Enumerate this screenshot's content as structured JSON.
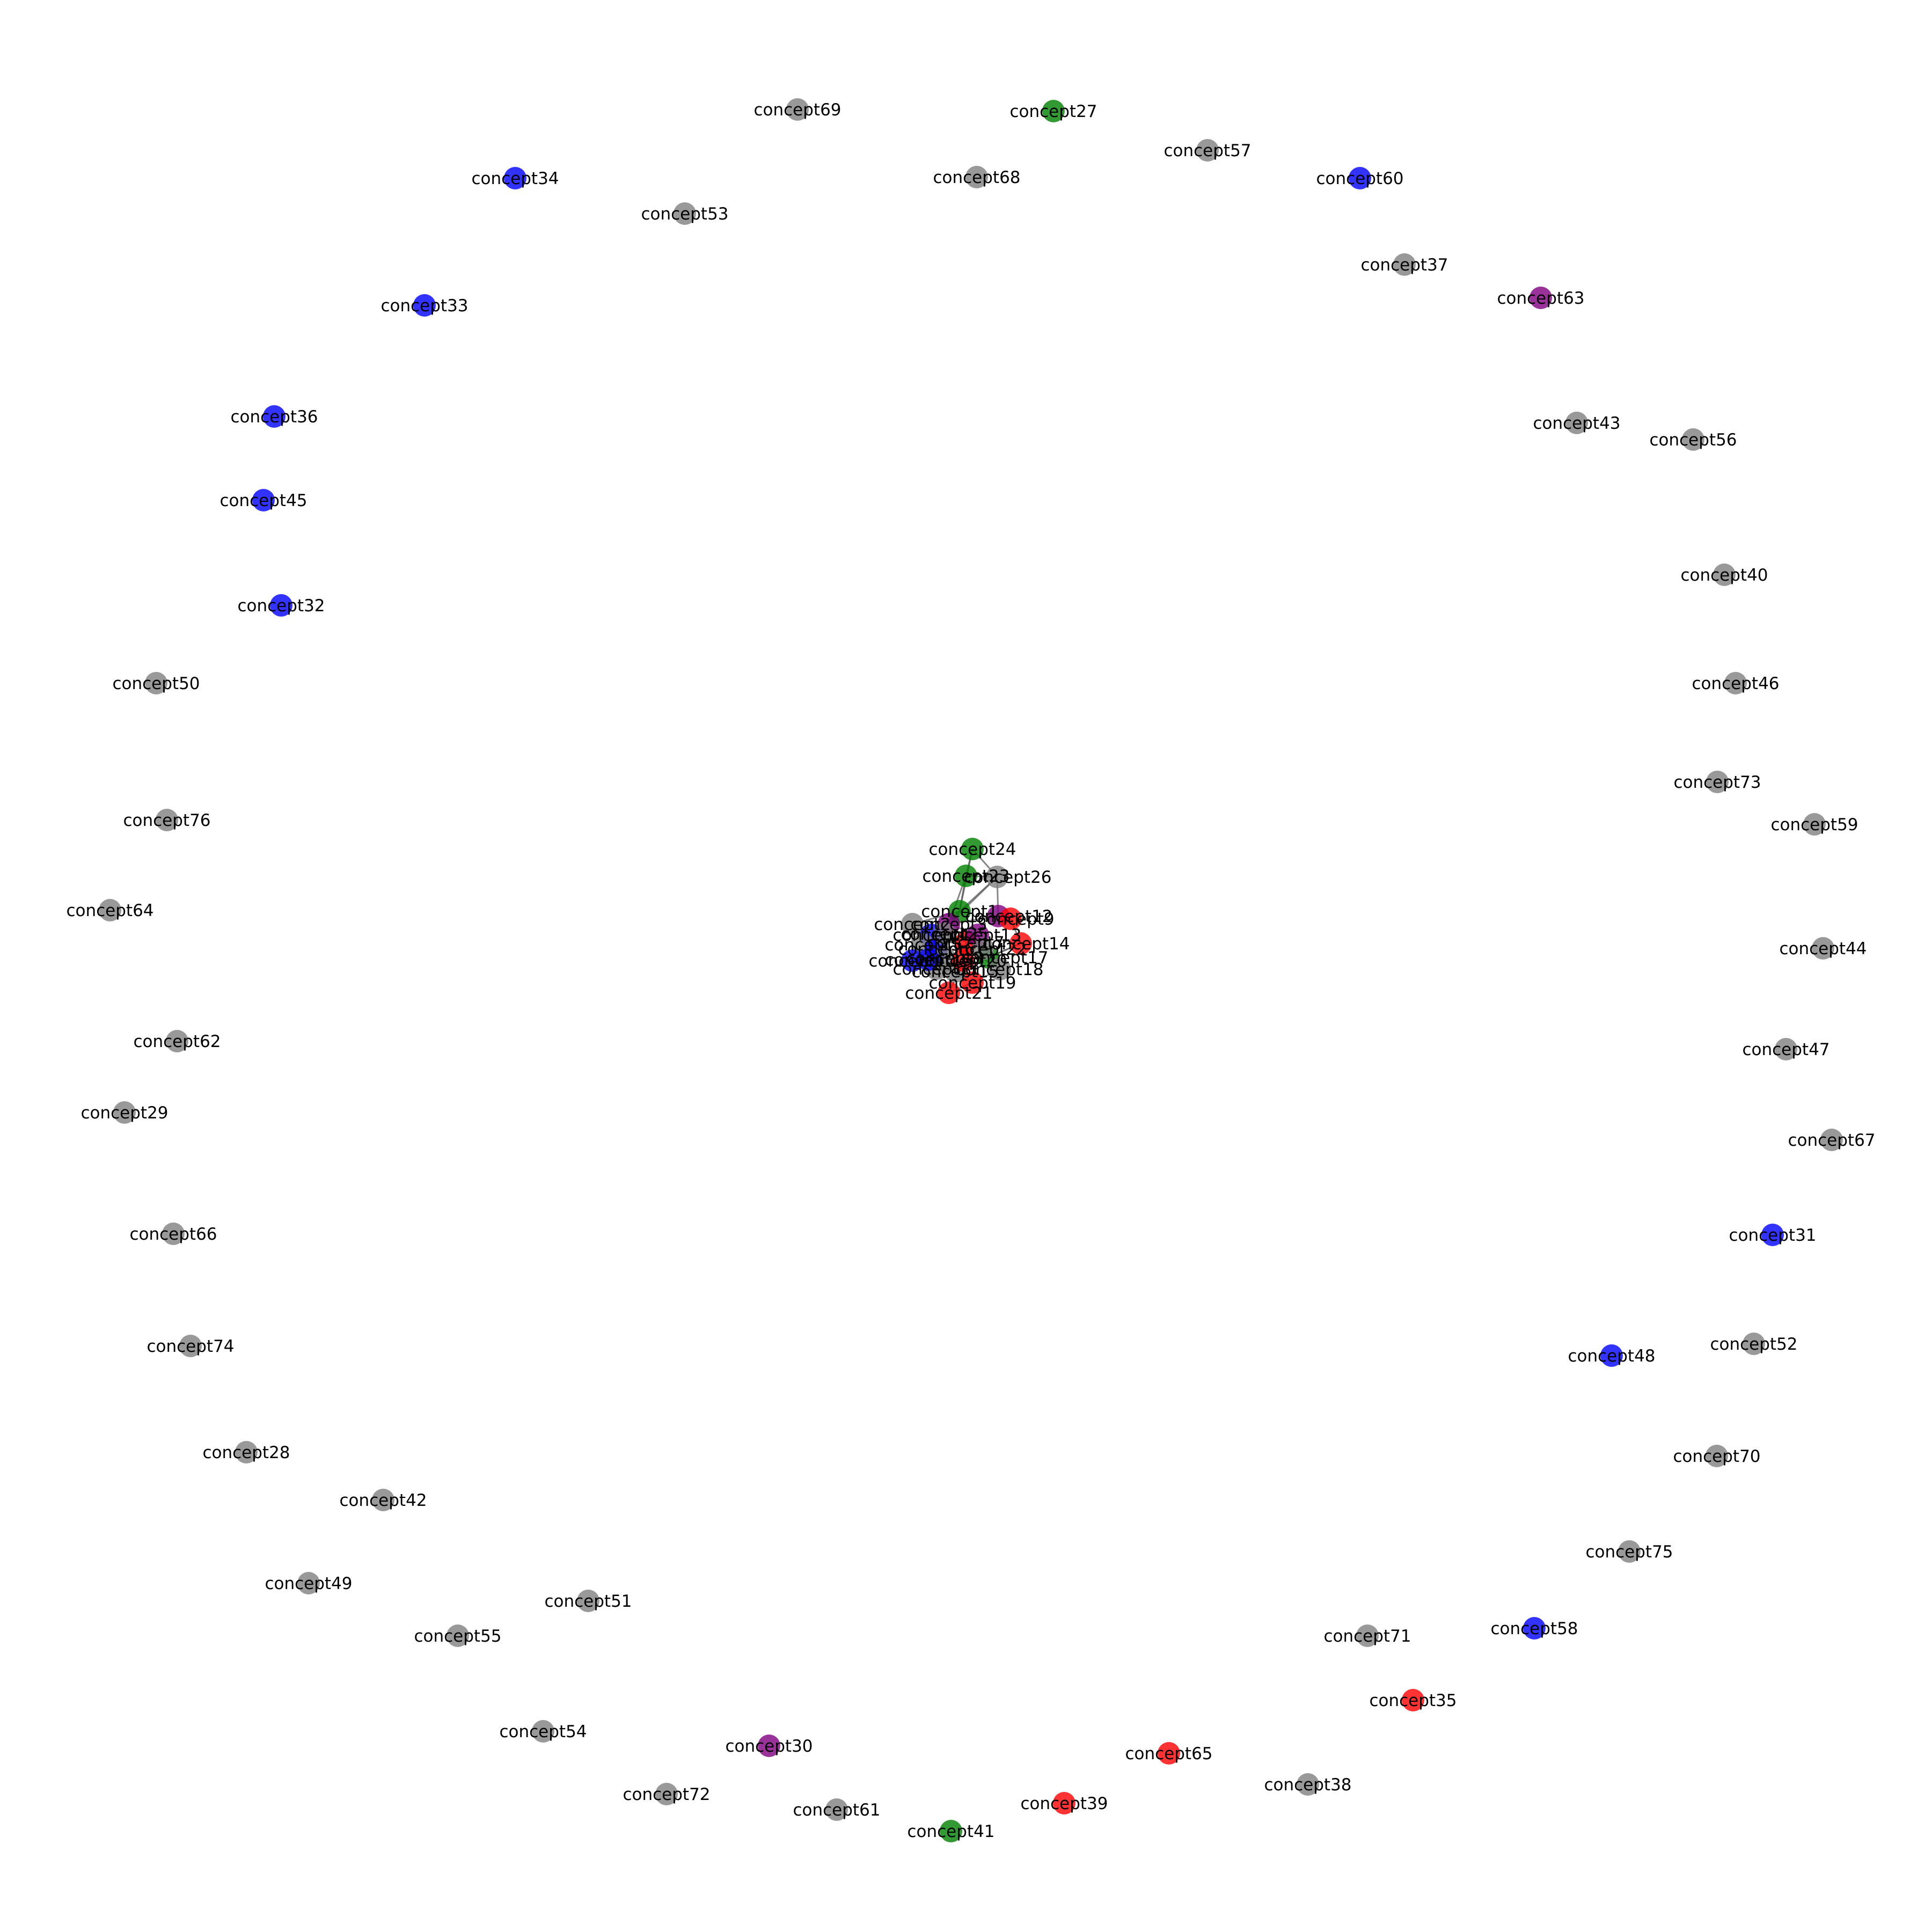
{
  "colors": {
    "gray": "#808080",
    "blue": "#0000ff",
    "green": "#008000",
    "red": "#ff0000",
    "purple": "#800080"
  },
  "nodes": [
    {
      "id": "concept69",
      "color": "gray"
    },
    {
      "id": "concept27",
      "color": "green"
    },
    {
      "id": "concept57",
      "color": "gray"
    },
    {
      "id": "concept34",
      "color": "blue"
    },
    {
      "id": "concept68",
      "color": "gray"
    },
    {
      "id": "concept60",
      "color": "blue"
    },
    {
      "id": "concept53",
      "color": "gray"
    },
    {
      "id": "concept37",
      "color": "gray"
    },
    {
      "id": "concept33",
      "color": "blue"
    },
    {
      "id": "concept63",
      "color": "purple"
    },
    {
      "id": "concept36",
      "color": "blue"
    },
    {
      "id": "concept43",
      "color": "gray"
    },
    {
      "id": "concept56",
      "color": "gray"
    },
    {
      "id": "concept45",
      "color": "blue"
    },
    {
      "id": "concept40",
      "color": "gray"
    },
    {
      "id": "concept32",
      "color": "blue"
    },
    {
      "id": "concept50",
      "color": "gray"
    },
    {
      "id": "concept46",
      "color": "gray"
    },
    {
      "id": "concept73",
      "color": "gray"
    },
    {
      "id": "concept76",
      "color": "gray"
    },
    {
      "id": "concept59",
      "color": "gray"
    },
    {
      "id": "concept64",
      "color": "gray"
    },
    {
      "id": "concept44",
      "color": "gray"
    },
    {
      "id": "concept62",
      "color": "gray"
    },
    {
      "id": "concept47",
      "color": "gray"
    },
    {
      "id": "concept29",
      "color": "gray"
    },
    {
      "id": "concept67",
      "color": "gray"
    },
    {
      "id": "concept66",
      "color": "gray"
    },
    {
      "id": "concept31",
      "color": "blue"
    },
    {
      "id": "concept74",
      "color": "gray"
    },
    {
      "id": "concept52",
      "color": "gray"
    },
    {
      "id": "concept48",
      "color": "blue"
    },
    {
      "id": "concept28",
      "color": "gray"
    },
    {
      "id": "concept70",
      "color": "gray"
    },
    {
      "id": "concept42",
      "color": "gray"
    },
    {
      "id": "concept75",
      "color": "gray"
    },
    {
      "id": "concept49",
      "color": "gray"
    },
    {
      "id": "concept51",
      "color": "gray"
    },
    {
      "id": "concept55",
      "color": "gray"
    },
    {
      "id": "concept71",
      "color": "gray"
    },
    {
      "id": "concept58",
      "color": "blue"
    },
    {
      "id": "concept35",
      "color": "red"
    },
    {
      "id": "concept54",
      "color": "gray"
    },
    {
      "id": "concept30",
      "color": "purple"
    },
    {
      "id": "concept65",
      "color": "red"
    },
    {
      "id": "concept38",
      "color": "gray"
    },
    {
      "id": "concept72",
      "color": "gray"
    },
    {
      "id": "concept39",
      "color": "red"
    },
    {
      "id": "concept61",
      "color": "gray"
    },
    {
      "id": "concept41",
      "color": "green"
    },
    {
      "id": "concept24",
      "color": "green"
    },
    {
      "id": "concept23",
      "color": "green"
    },
    {
      "id": "concept26",
      "color": "gray"
    },
    {
      "id": "concept12",
      "color": "purple"
    },
    {
      "id": "concept9",
      "color": "red"
    },
    {
      "id": "concept14",
      "color": "red"
    },
    {
      "id": "concept17",
      "color": "green"
    },
    {
      "id": "concept18",
      "color": "gray"
    },
    {
      "id": "concept19",
      "color": "red"
    },
    {
      "id": "concept21",
      "color": "red"
    },
    {
      "id": "concept1",
      "color": "green"
    },
    {
      "id": "concept2",
      "color": "gray"
    },
    {
      "id": "concept3",
      "color": "purple"
    },
    {
      "id": "concept4",
      "color": "blue"
    },
    {
      "id": "concept5",
      "color": "gray"
    },
    {
      "id": "concept6",
      "color": "blue"
    },
    {
      "id": "concept7",
      "color": "red"
    },
    {
      "id": "concept8",
      "color": "gray"
    },
    {
      "id": "concept10",
      "color": "blue"
    },
    {
      "id": "concept11",
      "color": "gray"
    },
    {
      "id": "concept13",
      "color": "purple"
    },
    {
      "id": "concept15",
      "color": "gray"
    },
    {
      "id": "concept16",
      "color": "blue"
    },
    {
      "id": "concept20",
      "color": "red"
    },
    {
      "id": "concept22",
      "color": "gray"
    },
    {
      "id": "concept25",
      "color": "gray"
    }
  ],
  "edges": [
    [
      "concept24",
      "concept23"
    ],
    [
      "concept24",
      "concept26"
    ],
    [
      "concept24",
      "concept1"
    ],
    [
      "concept23",
      "concept26"
    ],
    [
      "concept23",
      "concept1"
    ],
    [
      "concept23",
      "concept3"
    ],
    [
      "concept26",
      "concept12"
    ],
    [
      "concept26",
      "concept1"
    ],
    [
      "concept26",
      "concept3"
    ],
    [
      "concept1",
      "concept2"
    ],
    [
      "concept1",
      "concept3"
    ],
    [
      "concept1",
      "concept4"
    ],
    [
      "concept2",
      "concept5"
    ],
    [
      "concept3",
      "concept12"
    ],
    [
      "concept12",
      "concept9"
    ],
    [
      "concept9",
      "concept14"
    ],
    [
      "concept14",
      "concept17"
    ],
    [
      "concept17",
      "concept18"
    ],
    [
      "concept18",
      "concept19"
    ],
    [
      "concept19",
      "concept21"
    ],
    [
      "concept21",
      "concept20"
    ],
    [
      "concept4",
      "concept6"
    ],
    [
      "concept6",
      "concept10"
    ],
    [
      "concept10",
      "concept16"
    ],
    [
      "concept5",
      "concept8"
    ],
    [
      "concept8",
      "concept11"
    ],
    [
      "concept11",
      "concept15"
    ],
    [
      "concept7",
      "concept13"
    ],
    [
      "concept13",
      "concept22"
    ],
    [
      "concept22",
      "concept25"
    ],
    [
      "concept16",
      "concept19"
    ],
    [
      "concept15",
      "concept14"
    ],
    [
      "concept25",
      "concept18"
    ],
    [
      "concept20",
      "concept7"
    ],
    [
      "concept2",
      "concept10"
    ],
    [
      "concept3",
      "concept13"
    ]
  ]
}
